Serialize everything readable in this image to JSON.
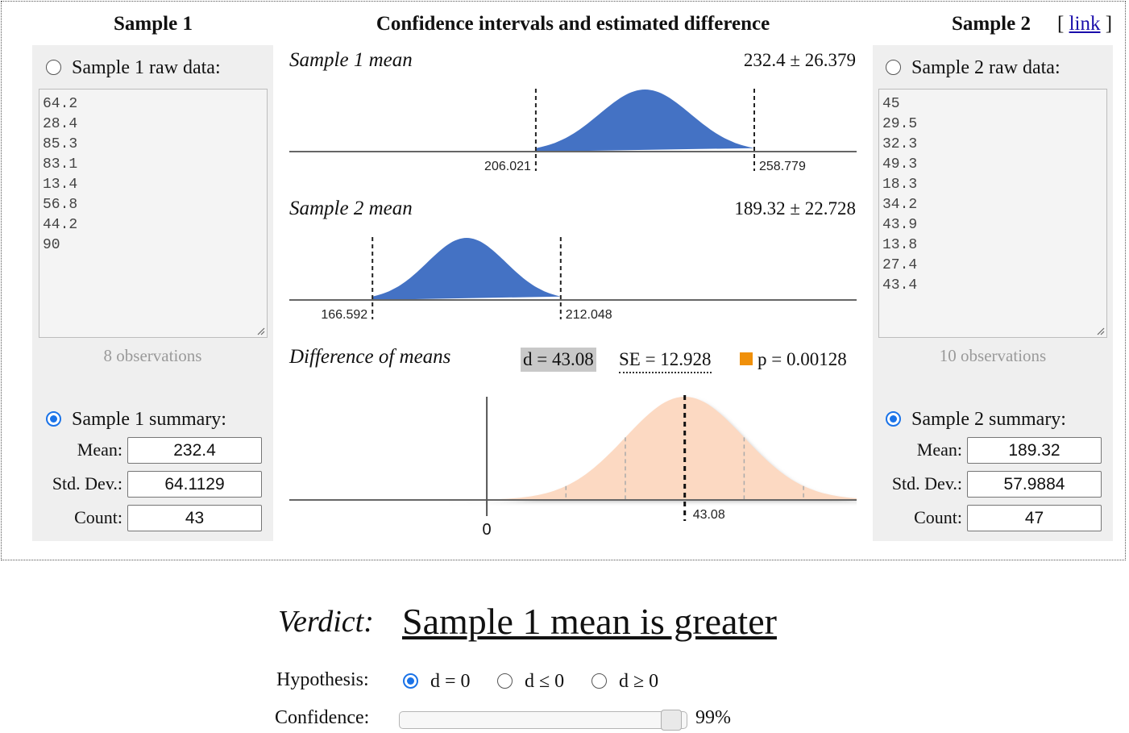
{
  "sample1": {
    "title": "Sample 1",
    "raw_label": "Sample 1 raw data:",
    "raw_data": [
      "64.2",
      "28.4",
      "85.3",
      "83.1",
      "13.4",
      "56.8",
      "44.2",
      "90"
    ],
    "observations": "8 observations",
    "summary_label": "Sample 1 summary:",
    "mean_label": "Mean:",
    "sd_label": "Std. Dev.:",
    "count_label": "Count:",
    "mean": "232.4",
    "sd": "64.1129",
    "count": "43",
    "raw_selected": false,
    "summary_selected": true
  },
  "sample2": {
    "title": "Sample 2",
    "link_open": "[",
    "link_label": "link",
    "link_close": "]",
    "raw_label": "Sample 2 raw data:",
    "raw_data": [
      "45",
      "29.5",
      "32.3",
      "49.3",
      "18.3",
      "34.2",
      "43.9",
      "13.8",
      "27.4",
      "43.4"
    ],
    "observations": "10 observations",
    "summary_label": "Sample 2 summary:",
    "mean_label": "Mean:",
    "sd_label": "Std. Dev.:",
    "count_label": "Count:",
    "mean": "189.32",
    "sd": "57.9884",
    "count": "47",
    "raw_selected": false,
    "summary_selected": true
  },
  "center": {
    "title": "Confidence intervals and estimated difference",
    "mean1_title": "Sample 1 mean",
    "mean1_value": "232.4 ± 26.379",
    "mean1_lo": "206.021",
    "mean1_hi": "258.779",
    "mean2_title": "Sample 2 mean",
    "mean2_value": "189.32 ± 22.728",
    "mean2_lo": "166.592",
    "mean2_hi": "212.048",
    "diff_title": "Difference of means",
    "d_text": "d = 43.08",
    "se_text": "SE = 12.928",
    "p_text": "p = 0.00128",
    "diff_value_label": "43.08",
    "zero_label": "0"
  },
  "colors": {
    "curve_blue": "#4472c4",
    "curve_peach": "#fcd9c2",
    "p_marker": "#f0900a",
    "panel_bg": "#efefef",
    "radio_blue": "#1a73e8"
  },
  "verdict": {
    "label": "Verdict:",
    "text": "Sample 1 mean is greater"
  },
  "hypothesis": {
    "label": "Hypothesis:",
    "options": [
      "d = 0",
      "d ≤ 0",
      "d ≥ 0"
    ],
    "selected": 0
  },
  "confidence": {
    "label": "Confidence:",
    "value_text": "99%",
    "level": 0.99
  }
}
